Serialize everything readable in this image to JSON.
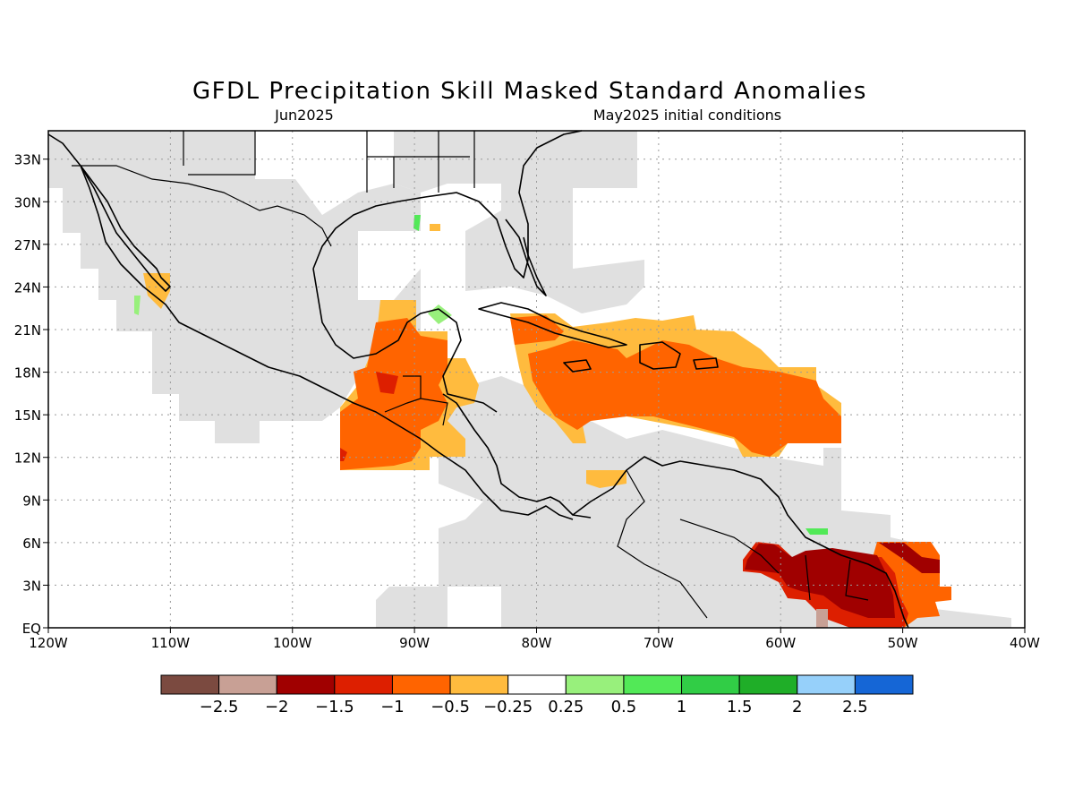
{
  "title": "GFDL Precipitation Skill Masked Standard Anomalies",
  "subtitle_left": "Jun2025",
  "subtitle_right": "May2025 initial conditions",
  "map": {
    "lon_range": [
      -120,
      -40
    ],
    "lat_range": [
      0,
      35
    ],
    "lon_ticks": [
      "120W",
      "110W",
      "100W",
      "90W",
      "80W",
      "70W",
      "60W",
      "50W",
      "40W"
    ],
    "lat_ticks": [
      "EQ",
      "3N",
      "6N",
      "9N",
      "12N",
      "15N",
      "18N",
      "21N",
      "24N",
      "27N",
      "30N",
      "33N"
    ],
    "grid": true,
    "mask_color": "#e0e0e0"
  },
  "colorbar": {
    "colors": [
      "#7b4a40",
      "#c8a095",
      "#a00000",
      "#dd1f00",
      "#ff6400",
      "#ffbb3e",
      "#ffffff",
      "#98f07c",
      "#52e957",
      "#31cd46",
      "#1fae28",
      "#96d0fa",
      "#1566d6"
    ],
    "labels": [
      "−2.5",
      "−2",
      "−1.5",
      "−1",
      "−0.5",
      "−0.25",
      "0.25",
      "0.5",
      "1",
      "1.5",
      "2",
      "2.5"
    ]
  },
  "anomaly_regions": [
    {
      "level": "-0.25",
      "color": "#ffbb3e",
      "area": "Gulf of Honduras / Yucatan"
    },
    {
      "level": "-0.5",
      "color": "#ff6400",
      "area": "Eastern Pacific off Guatemala"
    },
    {
      "level": "-0.25",
      "color": "#ffbb3e",
      "area": "Caribbean Sea north"
    },
    {
      "level": "-0.5",
      "color": "#ff6400",
      "area": "Central Caribbean"
    },
    {
      "level": "-1",
      "color": "#dd1f00",
      "area": "Guianas coast"
    },
    {
      "level": "-1.5",
      "color": "#a00000",
      "area": "Guianas interior"
    },
    {
      "level": "0.25",
      "color": "#98f07c",
      "area": "Yucatan small patch"
    }
  ]
}
